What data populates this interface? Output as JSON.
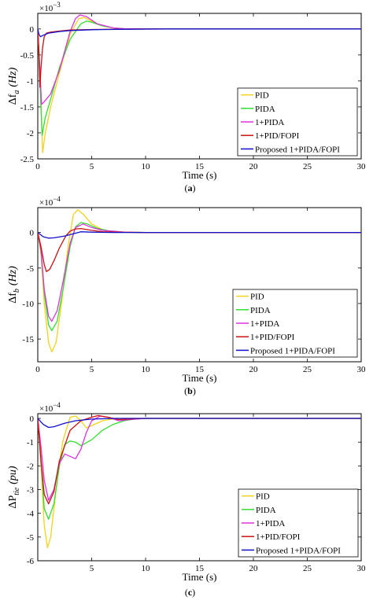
{
  "colors": {
    "PID": "#f2d21a",
    "PIDA": "#33dd33",
    "1+PIDA": "#dd33dd",
    "1+PID/FOPI": "#cc1111",
    "Proposed 1+PIDA/FOPI": "#1111cc"
  },
  "chart_data": [
    {
      "type": "line",
      "caption_pre": "(",
      "caption_letter": "a",
      "caption_post": ")",
      "ylabel_symbol": "Δf",
      "ylabel_sub": "a",
      "ylabel_unit": "(Hz)",
      "xlabel": "Time (s)",
      "scale_base": "×10",
      "scale_exp": "−3",
      "xlim": [
        0,
        30
      ],
      "ylim": [
        -2.5,
        0.3
      ],
      "xticks": [
        "0",
        "5",
        "10",
        "15",
        "20",
        "25",
        "30"
      ],
      "yticks": [
        "0",
        "-0.5",
        "-1",
        "-1.5",
        "-2",
        "-2.5"
      ],
      "legend_position": "lower-right",
      "series": [
        {
          "name": "PID",
          "x": [
            0,
            0.2,
            0.45,
            0.7,
            1.2,
            2,
            3,
            3.8,
            4.3,
            5,
            6,
            7,
            8,
            10,
            15,
            30
          ],
          "y": [
            0,
            -0.8,
            -2.38,
            -2.0,
            -1.5,
            -0.85,
            -0.1,
            0.2,
            0.22,
            0.15,
            0.06,
            0.02,
            0.005,
            0,
            0,
            0
          ]
        },
        {
          "name": "PIDA",
          "x": [
            0,
            0.2,
            0.4,
            0.7,
            1.2,
            2,
            3,
            4,
            4.5,
            5,
            6,
            7,
            8,
            10,
            15,
            30
          ],
          "y": [
            0,
            -1.0,
            -2.05,
            -1.7,
            -1.35,
            -0.75,
            -0.2,
            0.1,
            0.15,
            0.13,
            0.06,
            0.02,
            0.005,
            0,
            0,
            0
          ]
        },
        {
          "name": "1+PIDA",
          "x": [
            0,
            0.2,
            0.35,
            0.6,
            1.2,
            2,
            3,
            3.5,
            3.9,
            4.5,
            5.5,
            7,
            8,
            10,
            15,
            30
          ],
          "y": [
            0,
            -0.8,
            -1.45,
            -1.4,
            -1.25,
            -0.8,
            -0.05,
            0.2,
            0.27,
            0.24,
            0.1,
            0.02,
            0.005,
            0,
            0,
            0
          ]
        },
        {
          "name": "1+PID/FOPI",
          "x": [
            0,
            0.1,
            0.2,
            0.3,
            0.45,
            0.6,
            0.8,
            1.2,
            2,
            3,
            5,
            10,
            30
          ],
          "y": [
            0,
            -0.4,
            -1.12,
            -0.75,
            -0.35,
            -0.15,
            -0.08,
            -0.06,
            -0.04,
            -0.02,
            -0.01,
            0,
            0
          ]
        },
        {
          "name": "Proposed 1+PIDA/FOPI",
          "x": [
            0,
            0.1,
            0.25,
            0.5,
            1,
            2,
            3,
            5,
            8,
            12,
            30
          ],
          "y": [
            0,
            -0.1,
            -0.15,
            -0.12,
            -0.08,
            -0.05,
            -0.03,
            -0.015,
            -0.005,
            0,
            0
          ]
        }
      ]
    },
    {
      "type": "line",
      "caption_pre": "(",
      "caption_letter": "b",
      "caption_post": ")",
      "ylabel_symbol": "Δf",
      "ylabel_sub": "b",
      "ylabel_unit": "(Hz)",
      "xlabel": "Time (s)",
      "scale_base": "×10",
      "scale_exp": "−4",
      "xlim": [
        0,
        30
      ],
      "ylim": [
        -18.2,
        3.5
      ],
      "xticks": [
        "0",
        "5",
        "10",
        "15",
        "20",
        "25",
        "30"
      ],
      "yticks": [
        "0",
        "-5",
        "-10",
        "-15"
      ],
      "legend_position": "lower-right",
      "series": [
        {
          "name": "PID",
          "x": [
            0,
            0.3,
            0.6,
            1,
            1.3,
            1.7,
            2.2,
            2.8,
            3.3,
            3.7,
            4.2,
            5,
            6,
            7,
            8,
            10,
            30
          ],
          "y": [
            0,
            -3,
            -10,
            -15.5,
            -16.8,
            -15.5,
            -10,
            -2,
            2.5,
            3.2,
            2.6,
            1.2,
            0.4,
            0.1,
            0.02,
            0,
            0
          ]
        },
        {
          "name": "PIDA",
          "x": [
            0,
            0.3,
            0.6,
            1,
            1.3,
            1.8,
            2.4,
            3,
            3.5,
            4,
            4.6,
            5.5,
            6.5,
            8,
            10,
            30
          ],
          "y": [
            0,
            -2.5,
            -8.5,
            -13,
            -13.8,
            -12.5,
            -7.5,
            -2,
            0.8,
            1.4,
            1.2,
            0.6,
            0.25,
            0.05,
            0,
            0
          ]
        },
        {
          "name": "1+PIDA",
          "x": [
            0,
            0.3,
            0.6,
            1,
            1.3,
            1.8,
            2.4,
            3,
            3.5,
            4.2,
            5,
            6,
            8,
            10,
            30
          ],
          "y": [
            0,
            -2.5,
            -8,
            -11.8,
            -12.5,
            -11,
            -6.5,
            -1.5,
            0.7,
            1.2,
            0.7,
            0.3,
            0.05,
            0,
            0
          ]
        },
        {
          "name": "1+PID/FOPI",
          "x": [
            0,
            0.3,
            0.6,
            0.8,
            1.1,
            1.5,
            2,
            2.6,
            3,
            3.5,
            4,
            5,
            6,
            8,
            10,
            30
          ],
          "y": [
            0,
            -2,
            -4.5,
            -5.5,
            -5.2,
            -4,
            -2.2,
            -0.5,
            0.2,
            0.5,
            0.55,
            0.3,
            0.1,
            0.02,
            0,
            0
          ]
        },
        {
          "name": "Proposed 1+PIDA/FOPI",
          "x": [
            0,
            0.5,
            1,
            1.5,
            2.5,
            3.5,
            4,
            5,
            7,
            10,
            30
          ],
          "y": [
            0,
            -0.6,
            -0.8,
            -0.75,
            -0.5,
            -0.1,
            0.1,
            0.05,
            0,
            0,
            0
          ]
        }
      ]
    },
    {
      "type": "line",
      "caption_pre": "(",
      "caption_letter": "c",
      "caption_post": ")",
      "ylabel_symbol": "ΔP",
      "ylabel_sub": "tie",
      "ylabel_unit": "(pu)",
      "xlabel": "Time (s)",
      "scale_base": "×10",
      "scale_exp": "−4",
      "xlim": [
        0,
        30
      ],
      "ylim": [
        -6,
        0.2
      ],
      "xticks": [
        "5",
        "10",
        "15",
        "20",
        "25",
        "30"
      ],
      "yticks": [
        "0",
        "-1",
        "-2",
        "-3",
        "-4",
        "-5",
        "-6"
      ],
      "legend_position": "lower-right",
      "series": [
        {
          "name": "PID",
          "x": [
            0,
            0.3,
            0.6,
            0.9,
            1.2,
            1.7,
            2.3,
            3,
            3.5,
            4,
            4.5,
            5,
            6,
            7,
            8,
            9,
            10,
            30
          ],
          "y": [
            0,
            -2,
            -4.5,
            -5.45,
            -5,
            -3,
            -1,
            0.05,
            0.1,
            -0.1,
            -0.4,
            -0.3,
            -0.1,
            -0.02,
            0,
            0,
            0,
            0
          ]
        },
        {
          "name": "PIDA",
          "x": [
            0,
            0.3,
            0.6,
            1,
            1.5,
            2,
            2.5,
            3,
            3.5,
            4,
            5,
            6,
            7,
            8,
            9,
            10,
            30
          ],
          "y": [
            0,
            -1.8,
            -3.8,
            -4.25,
            -3.6,
            -2,
            -1.1,
            -0.95,
            -1.0,
            -1.15,
            -0.9,
            -0.5,
            -0.25,
            -0.1,
            -0.03,
            0,
            0
          ]
        },
        {
          "name": "1+PIDA",
          "x": [
            0,
            0.3,
            0.6,
            1,
            1.5,
            2,
            2.5,
            3,
            3.5,
            4,
            4.5,
            5,
            5.8,
            6.5,
            7.5,
            8.5,
            10,
            30
          ],
          "y": [
            0,
            -1.2,
            -2.6,
            -3.45,
            -3.0,
            -1.9,
            -1.5,
            -1.6,
            -1.7,
            -1.3,
            -0.6,
            -0.1,
            0.1,
            0.05,
            -0.1,
            -0.05,
            0,
            0
          ]
        },
        {
          "name": "1+PID/FOPI",
          "x": [
            0,
            0.3,
            0.6,
            1,
            1.5,
            2,
            3,
            4,
            5,
            5.6,
            6.5,
            7.5,
            8.5,
            10,
            30
          ],
          "y": [
            0,
            -1.8,
            -3.2,
            -3.6,
            -3.1,
            -1.8,
            -0.5,
            -0.1,
            0.05,
            0.12,
            0.05,
            -0.05,
            -0.02,
            0,
            0
          ]
        },
        {
          "name": "Proposed 1+PIDA/FOPI",
          "x": [
            0,
            0.5,
            1,
            1.5,
            2.5,
            3.5,
            5,
            7,
            10,
            30
          ],
          "y": [
            0,
            -0.25,
            -0.38,
            -0.35,
            -0.2,
            -0.1,
            -0.03,
            0,
            0,
            0
          ]
        }
      ]
    }
  ]
}
